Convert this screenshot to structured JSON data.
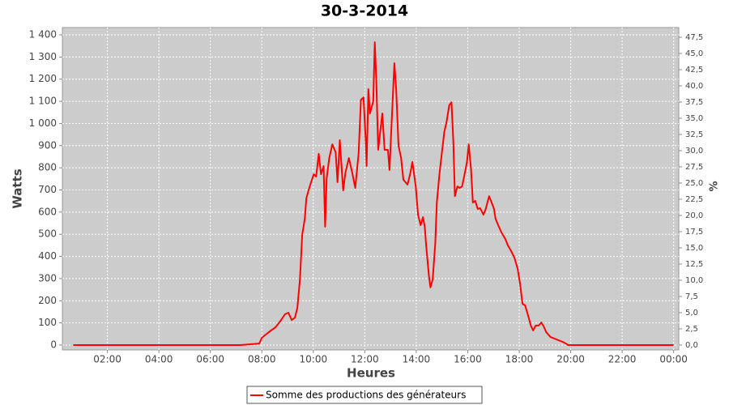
{
  "chart_data": {
    "type": "line",
    "title": "30-3-2014",
    "x_label": "Heures",
    "y_label": "Watts",
    "y2_label": "%",
    "x": [
      0.67,
      7.16,
      7.9,
      8.0,
      8.27,
      8.53,
      8.75,
      8.9,
      9.03,
      9.16,
      9.29,
      9.38,
      9.48,
      9.57,
      9.67,
      9.73,
      9.86,
      10.02,
      10.11,
      10.21,
      10.3,
      10.4,
      10.46,
      10.52,
      10.62,
      10.74,
      10.87,
      10.94,
      11.03,
      11.16,
      11.25,
      11.38,
      11.51,
      11.63,
      11.76,
      11.85,
      11.95,
      12.04,
      12.07,
      12.14,
      12.2,
      12.33,
      12.39,
      12.45,
      12.52,
      12.61,
      12.68,
      12.77,
      12.9,
      12.96,
      13.03,
      13.15,
      13.22,
      13.31,
      13.41,
      13.5,
      13.66,
      13.76,
      13.85,
      13.98,
      14.07,
      14.17,
      14.26,
      14.33,
      14.39,
      14.49,
      14.55,
      14.64,
      14.74,
      14.8,
      14.9,
      14.99,
      15.09,
      15.18,
      15.28,
      15.37,
      15.44,
      15.5,
      15.6,
      15.69,
      15.78,
      15.88,
      15.97,
      16.04,
      16.13,
      16.2,
      16.29,
      16.39,
      16.48,
      16.61,
      16.7,
      16.83,
      16.93,
      17.02,
      17.08,
      17.21,
      17.31,
      17.46,
      17.56,
      17.69,
      17.81,
      17.94,
      18.03,
      18.13,
      18.23,
      18.35,
      18.45,
      18.54,
      18.64,
      18.76,
      18.86,
      18.95,
      19.05,
      19.21,
      19.37,
      19.52,
      19.68,
      19.81,
      19.9,
      24.0
    ],
    "series": [
      {
        "name": "Somme des productions des  générateurs",
        "color": "#ff0000",
        "values": [
          0,
          0,
          7,
          33,
          58,
          80,
          113,
          139,
          146,
          113,
          124,
          168,
          296,
          497,
          570,
          662,
          716,
          771,
          760,
          863,
          771,
          808,
          534,
          753,
          844,
          906,
          870,
          735,
          925,
          698,
          779,
          844,
          779,
          709,
          863,
          1107,
          1118,
          917,
          808,
          1155,
          1045,
          1100,
          1367,
          1192,
          881,
          972,
          1045,
          881,
          881,
          790,
          972,
          1272,
          1155,
          899,
          844,
          746,
          724,
          771,
          826,
          716,
          588,
          541,
          577,
          534,
          442,
          314,
          260,
          296,
          461,
          643,
          771,
          863,
          961,
          1009,
          1082,
          1096,
          917,
          672,
          716,
          709,
          716,
          771,
          826,
          906,
          790,
          643,
          651,
          614,
          618,
          588,
          614,
          672,
          643,
          614,
          570,
          534,
          508,
          479,
          450,
          424,
          395,
          344,
          278,
          186,
          179,
          132,
          88,
          66,
          88,
          88,
          102,
          84,
          58,
          37,
          29,
          22,
          15,
          7,
          0,
          0
        ]
      }
    ],
    "xlim": [
      0.25,
      24.2
    ],
    "xticks": [
      {
        "value": 2,
        "label": "02:00"
      },
      {
        "value": 4,
        "label": "04:00"
      },
      {
        "value": 6,
        "label": "06:00"
      },
      {
        "value": 8,
        "label": "08:00"
      },
      {
        "value": 10,
        "label": "10:00"
      },
      {
        "value": 12,
        "label": "12:00"
      },
      {
        "value": 14,
        "label": "14:00"
      },
      {
        "value": 16,
        "label": "16:00"
      },
      {
        "value": 18,
        "label": "18:00"
      },
      {
        "value": 20,
        "label": "20:00"
      },
      {
        "value": 22,
        "label": "22:00"
      },
      {
        "value": 24,
        "label": "00:00"
      }
    ],
    "ylim": [
      -22,
      1433
    ],
    "yticks": [
      0,
      100,
      200,
      300,
      400,
      500,
      600,
      700,
      800,
      900,
      {
        "value": 1000,
        "label": "1 000"
      },
      {
        "value": 1100,
        "label": "1 100"
      },
      {
        "value": 1200,
        "label": "1 200"
      },
      {
        "value": 1300,
        "label": "1 300"
      },
      {
        "value": 1400,
        "label": "1 400"
      }
    ],
    "y2lim": [
      -0.75,
      49
    ],
    "y2ticks": [
      {
        "value": 0,
        "label": "0,0"
      },
      {
        "value": 2.5,
        "label": "2,5"
      },
      {
        "value": 5,
        "label": "5,0"
      },
      {
        "value": 7.5,
        "label": "7,5"
      },
      {
        "value": 10,
        "label": "10,0"
      },
      {
        "value": 12.5,
        "label": "12,5"
      },
      {
        "value": 15,
        "label": "15,0"
      },
      {
        "value": 17.5,
        "label": "17,5"
      },
      {
        "value": 20,
        "label": "20,0"
      },
      {
        "value": 22.5,
        "label": "22,5"
      },
      {
        "value": 25,
        "label": "25,0"
      },
      {
        "value": 27.5,
        "label": "27,5"
      },
      {
        "value": 30,
        "label": "30,0"
      },
      {
        "value": 32.5,
        "label": "32,5"
      },
      {
        "value": 35,
        "label": "35,0"
      },
      {
        "value": 37.5,
        "label": "37,5"
      },
      {
        "value": 40,
        "label": "40,0"
      },
      {
        "value": 42.5,
        "label": "42,5"
      },
      {
        "value": 45,
        "label": "45,0"
      },
      {
        "value": 47.5,
        "label": "47,5"
      }
    ],
    "grid": true,
    "legend": "bottom"
  }
}
